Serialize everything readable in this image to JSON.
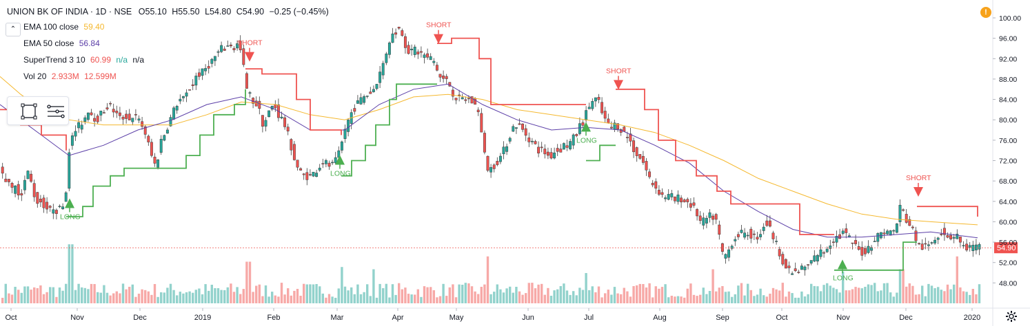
{
  "header": {
    "symbol": "UNION BK OF INDIA · 1D · NSE",
    "open": "O55.10",
    "high": "H55.50",
    "low": "L54.80",
    "close": "C54.90",
    "change": "−0.25 (−0.45%)"
  },
  "indicators": [
    {
      "label": "EMA 100 close",
      "value": "59.40",
      "color": "#f5b82e"
    },
    {
      "label": "EMA 50 close",
      "value": "56.84",
      "color": "#5b3ea7"
    },
    {
      "label": "SuperTrend 3 10",
      "value": "60.99",
      "extra1": "n/a",
      "extra2": "n/a",
      "color": "#ef5350",
      "extra_color": "#26a69a"
    },
    {
      "label": "Vol 20",
      "value": "2.933M",
      "value2": "12.599M",
      "color": "#ef5350"
    }
  ],
  "icons": {
    "collapse": "chevron-up-icon",
    "alert": "alert-icon",
    "settings": "gear-icon",
    "rectangle": "rectangle-tool-icon",
    "lines": "lines-tool-icon"
  },
  "alert_symbol": "!",
  "colors": {
    "up": "#26a69a",
    "down": "#ef5350",
    "ema100": "#f5b82e",
    "ema50": "#5b3ea7",
    "st_up": "#4caf50",
    "st_down": "#ef5350",
    "last_price": "#ef5350"
  },
  "chart_data": {
    "type": "candlestick",
    "title": "UNION BK OF INDIA · 1D · NSE",
    "ylim": [
      45,
      102
    ],
    "y_ticks": [
      "100.00",
      "96.00",
      "92.00",
      "88.00",
      "84.00",
      "80.00",
      "76.00",
      "72.00",
      "68.00",
      "64.00",
      "60.00",
      "56.00",
      "52.00",
      "48.00"
    ],
    "x_ticks": [
      "Oct",
      "Nov",
      "Dec",
      "2019",
      "Feb",
      "Mar",
      "Apr",
      "May",
      "Jun",
      "Jul",
      "Aug",
      "Sep",
      "Oct",
      "Nov",
      "Dec",
      "2020"
    ],
    "last_price": "54.90",
    "close_path": [
      [
        0,
        71
      ],
      [
        6,
        68
      ],
      [
        12,
        69
      ],
      [
        18,
        66
      ],
      [
        24,
        67
      ],
      [
        30,
        65
      ],
      [
        36,
        68
      ],
      [
        42,
        70
      ],
      [
        48,
        66
      ],
      [
        54,
        64
      ],
      [
        60,
        64
      ],
      [
        66,
        63
      ],
      [
        72,
        62
      ],
      [
        78,
        63
      ],
      [
        84,
        62
      ],
      [
        90,
        63
      ],
      [
        96,
        66
      ],
      [
        100,
        74
      ],
      [
        104,
        76
      ],
      [
        110,
        78
      ],
      [
        116,
        79
      ],
      [
        122,
        80
      ],
      [
        128,
        82
      ],
      [
        134,
        81
      ],
      [
        140,
        80
      ],
      [
        146,
        81
      ],
      [
        152,
        82
      ],
      [
        158,
        83
      ],
      [
        164,
        82
      ],
      [
        170,
        81
      ],
      [
        176,
        80
      ],
      [
        182,
        81
      ],
      [
        188,
        80
      ],
      [
        194,
        81
      ],
      [
        200,
        80
      ],
      [
        206,
        79
      ],
      [
        212,
        77
      ],
      [
        218,
        74
      ],
      [
        222,
        72
      ],
      [
        226,
        71
      ],
      [
        230,
        73
      ],
      [
        234,
        76
      ],
      [
        238,
        77
      ],
      [
        244,
        79
      ],
      [
        250,
        81
      ],
      [
        256,
        83
      ],
      [
        262,
        84
      ],
      [
        268,
        84
      ],
      [
        274,
        86
      ],
      [
        280,
        87
      ],
      [
        286,
        89
      ],
      [
        292,
        89
      ],
      [
        298,
        90
      ],
      [
        304,
        91
      ],
      [
        310,
        92
      ],
      [
        316,
        93
      ],
      [
        322,
        94
      ],
      [
        328,
        94
      ],
      [
        334,
        95
      ],
      [
        340,
        94
      ],
      [
        346,
        95
      ],
      [
        350,
        93
      ],
      [
        354,
        90
      ],
      [
        358,
        86
      ],
      [
        362,
        85
      ],
      [
        366,
        84
      ],
      [
        370,
        83
      ],
      [
        374,
        83
      ],
      [
        378,
        81
      ],
      [
        382,
        79
      ],
      [
        386,
        80
      ],
      [
        392,
        82
      ],
      [
        398,
        83
      ],
      [
        404,
        81
      ],
      [
        410,
        80
      ],
      [
        416,
        78
      ],
      [
        422,
        75
      ],
      [
        428,
        72
      ],
      [
        434,
        70
      ],
      [
        440,
        69
      ],
      [
        446,
        69
      ],
      [
        452,
        69
      ],
      [
        458,
        70
      ],
      [
        464,
        71
      ],
      [
        470,
        72
      ],
      [
        476,
        71
      ],
      [
        482,
        71
      ],
      [
        488,
        72
      ],
      [
        494,
        74
      ],
      [
        500,
        78
      ],
      [
        506,
        80
      ],
      [
        512,
        82
      ],
      [
        518,
        83
      ],
      [
        524,
        84
      ],
      [
        530,
        85
      ],
      [
        536,
        85
      ],
      [
        542,
        86
      ],
      [
        548,
        88
      ],
      [
        554,
        90
      ],
      [
        560,
        93
      ],
      [
        566,
        96
      ],
      [
        572,
        97
      ],
      [
        578,
        98
      ],
      [
        584,
        97
      ],
      [
        590,
        94
      ],
      [
        596,
        93
      ],
      [
        602,
        94
      ],
      [
        608,
        93
      ],
      [
        614,
        93
      ],
      [
        620,
        92
      ],
      [
        626,
        92
      ],
      [
        632,
        91
      ],
      [
        636,
        89
      ],
      [
        640,
        88
      ],
      [
        646,
        88
      ],
      [
        652,
        87
      ],
      [
        658,
        85
      ],
      [
        664,
        84
      ],
      [
        670,
        84
      ],
      [
        676,
        84
      ],
      [
        682,
        84
      ],
      [
        688,
        83
      ],
      [
        694,
        82
      ],
      [
        698,
        78
      ],
      [
        702,
        74
      ],
      [
        706,
        71
      ],
      [
        710,
        70
      ],
      [
        716,
        71
      ],
      [
        722,
        72
      ],
      [
        728,
        73
      ],
      [
        734,
        75
      ],
      [
        740,
        77
      ],
      [
        746,
        79
      ],
      [
        752,
        79
      ],
      [
        758,
        78
      ],
      [
        764,
        77
      ],
      [
        770,
        76
      ],
      [
        776,
        75
      ],
      [
        782,
        74
      ],
      [
        788,
        74
      ],
      [
        794,
        73
      ],
      [
        800,
        73
      ],
      [
        806,
        74
      ],
      [
        812,
        74
      ],
      [
        818,
        75
      ],
      [
        824,
        75
      ],
      [
        830,
        76
      ],
      [
        836,
        77
      ],
      [
        842,
        79
      ],
      [
        848,
        80
      ],
      [
        852,
        82
      ],
      [
        856,
        83
      ],
      [
        862,
        84
      ],
      [
        866,
        84
      ],
      [
        870,
        83
      ],
      [
        874,
        81
      ],
      [
        878,
        80
      ],
      [
        882,
        79
      ],
      [
        886,
        78
      ],
      [
        890,
        79
      ],
      [
        896,
        79
      ],
      [
        902,
        78
      ],
      [
        908,
        77
      ],
      [
        914,
        76
      ],
      [
        920,
        74
      ],
      [
        926,
        73
      ],
      [
        932,
        72
      ],
      [
        938,
        70
      ],
      [
        944,
        68
      ],
      [
        950,
        67
      ],
      [
        956,
        66
      ],
      [
        962,
        65
      ],
      [
        968,
        65
      ],
      [
        974,
        65
      ],
      [
        980,
        64
      ],
      [
        986,
        65
      ],
      [
        992,
        64
      ],
      [
        998,
        64
      ],
      [
        1004,
        63
      ],
      [
        1010,
        62
      ],
      [
        1016,
        60
      ],
      [
        1022,
        60
      ],
      [
        1028,
        61
      ],
      [
        1034,
        61
      ],
      [
        1040,
        60
      ],
      [
        1046,
        55
      ],
      [
        1050,
        53
      ],
      [
        1056,
        54
      ],
      [
        1062,
        56
      ],
      [
        1068,
        57
      ],
      [
        1074,
        58
      ],
      [
        1080,
        57
      ],
      [
        1086,
        58
      ],
      [
        1092,
        57
      ],
      [
        1098,
        57
      ],
      [
        1104,
        58
      ],
      [
        1110,
        60
      ],
      [
        1116,
        59
      ],
      [
        1122,
        57
      ],
      [
        1128,
        55
      ],
      [
        1134,
        53
      ],
      [
        1140,
        51
      ],
      [
        1146,
        50
      ],
      [
        1152,
        50
      ],
      [
        1158,
        50
      ],
      [
        1164,
        51
      ],
      [
        1170,
        51
      ],
      [
        1176,
        52
      ],
      [
        1182,
        53
      ],
      [
        1188,
        54
      ],
      [
        1194,
        54
      ],
      [
        1200,
        55
      ],
      [
        1206,
        56
      ],
      [
        1212,
        57
      ],
      [
        1218,
        57
      ],
      [
        1224,
        58
      ],
      [
        1230,
        57
      ],
      [
        1236,
        56
      ],
      [
        1242,
        55
      ],
      [
        1248,
        54
      ],
      [
        1254,
        54
      ],
      [
        1260,
        55
      ],
      [
        1266,
        56
      ],
      [
        1272,
        57
      ],
      [
        1278,
        58
      ],
      [
        1284,
        58
      ],
      [
        1290,
        58
      ],
      [
        1296,
        58
      ],
      [
        1302,
        60
      ],
      [
        1306,
        63
      ],
      [
        1310,
        62
      ],
      [
        1316,
        60
      ],
      [
        1322,
        59
      ],
      [
        1328,
        57
      ],
      [
        1334,
        55
      ],
      [
        1340,
        55
      ],
      [
        1346,
        55
      ],
      [
        1352,
        56
      ],
      [
        1358,
        57
      ],
      [
        1364,
        58
      ],
      [
        1370,
        58
      ],
      [
        1376,
        57
      ],
      [
        1382,
        57
      ],
      [
        1388,
        58
      ],
      [
        1392,
        56
      ],
      [
        1398,
        55
      ],
      [
        1404,
        55
      ],
      [
        1410,
        55
      ],
      [
        1418,
        54.9
      ]
    ],
    "ema100": [
      [
        0,
        88.5
      ],
      [
        30,
        85
      ],
      [
        60,
        82
      ],
      [
        100,
        80
      ],
      [
        150,
        79
      ],
      [
        200,
        79
      ],
      [
        250,
        79
      ],
      [
        300,
        81
      ],
      [
        350,
        83.5
      ],
      [
        400,
        83
      ],
      [
        450,
        81
      ],
      [
        500,
        80
      ],
      [
        550,
        82
      ],
      [
        600,
        84.5
      ],
      [
        650,
        85
      ],
      [
        700,
        84
      ],
      [
        750,
        82
      ],
      [
        800,
        81
      ],
      [
        850,
        80
      ],
      [
        900,
        79
      ],
      [
        950,
        77.5
      ],
      [
        1000,
        75
      ],
      [
        1050,
        72
      ],
      [
        1100,
        68.5
      ],
      [
        1150,
        66
      ],
      [
        1200,
        63.5
      ],
      [
        1250,
        61.5
      ],
      [
        1300,
        60.5
      ],
      [
        1350,
        60
      ],
      [
        1418,
        59.4
      ]
    ],
    "ema50": [
      [
        0,
        83
      ],
      [
        30,
        80
      ],
      [
        60,
        77
      ],
      [
        100,
        73
      ],
      [
        150,
        75
      ],
      [
        200,
        78
      ],
      [
        250,
        80
      ],
      [
        300,
        83
      ],
      [
        350,
        84.5
      ],
      [
        400,
        82
      ],
      [
        450,
        78
      ],
      [
        500,
        78
      ],
      [
        550,
        83
      ],
      [
        600,
        86
      ],
      [
        650,
        87
      ],
      [
        700,
        83
      ],
      [
        750,
        80
      ],
      [
        800,
        78
      ],
      [
        850,
        78.5
      ],
      [
        900,
        78
      ],
      [
        950,
        75
      ],
      [
        1000,
        71.5
      ],
      [
        1050,
        66
      ],
      [
        1100,
        62
      ],
      [
        1150,
        58.5
      ],
      [
        1200,
        57
      ],
      [
        1250,
        57
      ],
      [
        1300,
        57.5
      ],
      [
        1350,
        58
      ],
      [
        1418,
        56.84
      ]
    ],
    "supertrend": [
      {
        "dir": "down",
        "points": [
          [
            0,
            82
          ],
          [
            30,
            79
          ],
          [
            60,
            77
          ],
          [
            96,
            74
          ]
        ]
      },
      {
        "dir": "up",
        "points": [
          [
            96,
            61
          ],
          [
            120,
            63
          ],
          [
            135,
            67
          ],
          [
            160,
            69
          ],
          [
            180,
            70.5
          ],
          [
            250,
            70.5
          ],
          [
            270,
            73
          ],
          [
            290,
            77
          ],
          [
            310,
            81
          ],
          [
            340,
            83
          ],
          [
            356,
            86
          ]
        ]
      },
      {
        "dir": "down",
        "points": [
          [
            356,
            90
          ],
          [
            380,
            89
          ],
          [
            410,
            89
          ],
          [
            430,
            84
          ],
          [
            450,
            78
          ],
          [
            480,
            78
          ],
          [
            495,
            77
          ]
        ]
      },
      {
        "dir": "up",
        "points": [
          [
            495,
            69
          ],
          [
            510,
            72
          ],
          [
            530,
            75
          ],
          [
            545,
            79
          ],
          [
            565,
            84
          ],
          [
            575,
            87
          ],
          [
            634,
            87
          ]
        ]
      },
      {
        "dir": "down",
        "points": [
          [
            634,
            95
          ],
          [
            655,
            96
          ],
          [
            675,
            96
          ],
          [
            695,
            92
          ],
          [
            712,
            83
          ],
          [
            850,
            83
          ]
        ]
      },
      {
        "dir": "up",
        "points": [
          [
            850,
            72
          ],
          [
            870,
            75
          ],
          [
            893,
            75
          ]
        ]
      },
      {
        "dir": "down",
        "points": [
          [
            893,
            86
          ],
          [
            915,
            86
          ],
          [
            935,
            82
          ],
          [
            955,
            76
          ],
          [
            980,
            72
          ],
          [
            1010,
            69
          ],
          [
            1040,
            66
          ],
          [
            1060,
            63.5
          ],
          [
            1130,
            63.5
          ],
          [
            1160,
            57.5
          ],
          [
            1210,
            57.5
          ]
        ]
      },
      {
        "dir": "up",
        "points": [
          [
            1210,
            50.5
          ],
          [
            1225,
            50.5
          ],
          [
            1300,
            50.5
          ],
          [
            1310,
            56
          ],
          [
            1330,
            56
          ]
        ]
      },
      {
        "dir": "down",
        "points": [
          [
            1330,
            63
          ],
          [
            1395,
            63
          ],
          [
            1418,
            61
          ]
        ]
      }
    ],
    "signals": [
      {
        "type": "LONG",
        "x": 101,
        "price": 63.5
      },
      {
        "type": "SHORT",
        "x": 362,
        "price": 92.5
      },
      {
        "type": "LONG",
        "x": 493,
        "price": 72
      },
      {
        "type": "SHORT",
        "x": 636,
        "price": 96
      },
      {
        "type": "LONG",
        "x": 850,
        "price": 78.5
      },
      {
        "type": "SHORT",
        "x": 897,
        "price": 87
      },
      {
        "type": "LONG",
        "x": 1222,
        "price": 51.5
      },
      {
        "type": "SHORT",
        "x": 1332,
        "price": 66
      }
    ],
    "signal_labels": {
      "long": "LONG",
      "short": "SHORT"
    },
    "volume_spikes": [
      [
        101,
        0.78
      ],
      [
        358,
        0.55
      ],
      [
        493,
        0.48
      ],
      [
        540,
        0.45
      ],
      [
        705,
        0.62
      ],
      [
        850,
        0.4
      ],
      [
        1034,
        0.45
      ],
      [
        1222,
        0.42
      ],
      [
        1306,
        0.45
      ],
      [
        1388,
        0.62
      ]
    ]
  }
}
